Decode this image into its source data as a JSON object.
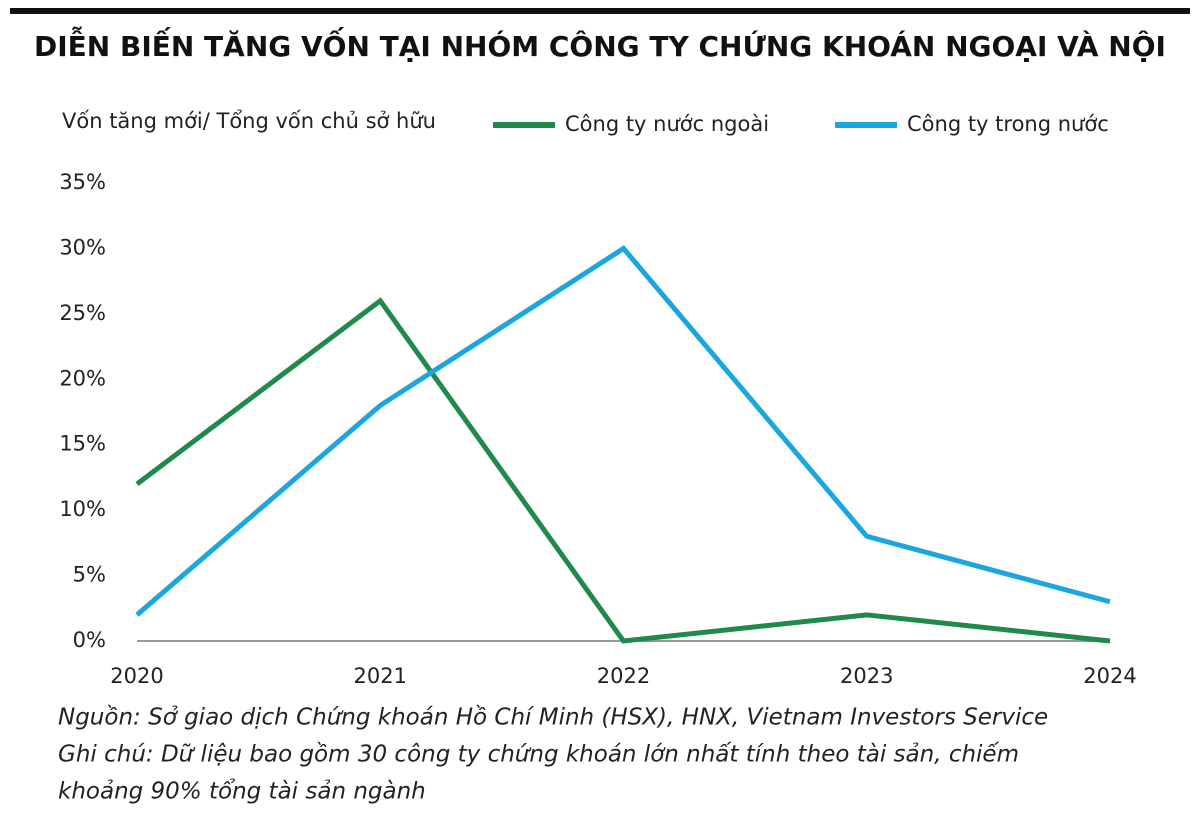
{
  "chart_data": {
    "type": "line",
    "title": "DIỄN BIẾN TĂNG VỐN TẠI NHÓM CÔNG TY CHỨNG KHOÁN NGOẠI VÀ NỘI",
    "y_label": "Vốn tăng mới/ Tổng vốn chủ sở hữu",
    "categories": [
      "2020",
      "2021",
      "2022",
      "2023",
      "2024"
    ],
    "series": [
      {
        "name": "Công ty nước ngoài",
        "color": "#1f8a4c",
        "values": [
          12,
          26,
          0,
          2,
          0
        ]
      },
      {
        "name": "Công ty trong nước",
        "color": "#1ba6df",
        "values": [
          2,
          18,
          30,
          8,
          3
        ]
      }
    ],
    "ylim": [
      0,
      35
    ],
    "yticks": [
      {
        "value": 0,
        "label": "0%"
      },
      {
        "value": 5,
        "label": "5%"
      },
      {
        "value": 10,
        "label": "10%"
      },
      {
        "value": 15,
        "label": "15%"
      },
      {
        "value": 20,
        "label": "20%"
      },
      {
        "value": 25,
        "label": "25%"
      },
      {
        "value": 30,
        "label": "30%"
      },
      {
        "value": 35,
        "label": "35%"
      }
    ],
    "grid": false,
    "legend": "top",
    "notes": [
      "Nguồn:  Sở giao dịch Chứng khoán Hồ Chí Minh (HSX), HNX, Vietnam Investors Service",
      "Ghi chú: Dữ liệu bao gồm 30 công ty chứng khoán lớn nhất tính theo tài sản, chiếm",
      "khoảng 90% tổng tài sản ngành"
    ]
  }
}
